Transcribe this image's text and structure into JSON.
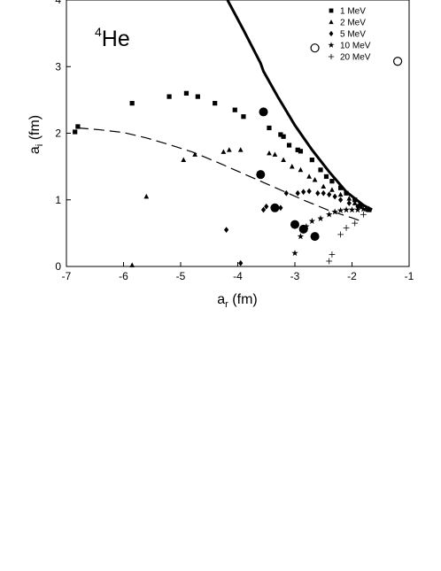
{
  "chart_data": {
    "type": "scatter",
    "xlabel_main": "a",
    "xlabel_sub": "r",
    "xlabel_unit": " (fm)",
    "ylabel_main": "a",
    "ylabel_sub": "i",
    "ylabel_unit": " (fm)",
    "xlim": [
      -7,
      -1
    ],
    "ylim": [
      0,
      4
    ],
    "x_ticks": [
      -7,
      -6,
      -5,
      -4,
      -3,
      -2,
      -1
    ],
    "y_ticks": [
      0,
      1,
      2,
      3,
      4
    ],
    "x_tick_labels": [
      "-7",
      "-6",
      "-5",
      "-4",
      "-3",
      "-2",
      "-1"
    ],
    "y_tick_labels": [
      "0",
      "1",
      "2",
      "3",
      "4"
    ],
    "annotation": {
      "superscript": "4",
      "text": "He"
    },
    "legend_position": "top-right",
    "series": [
      {
        "name": "1 MeV",
        "marker": "square",
        "points": [
          [
            -6.85,
            2.02
          ],
          [
            -6.8,
            2.1
          ],
          [
            -5.85,
            2.45
          ],
          [
            -5.2,
            2.55
          ],
          [
            -4.9,
            2.6
          ],
          [
            -4.7,
            2.55
          ],
          [
            -4.4,
            2.45
          ],
          [
            -4.05,
            2.35
          ],
          [
            -3.9,
            2.25
          ],
          [
            -3.45,
            2.08
          ],
          [
            -3.25,
            1.98
          ],
          [
            -3.2,
            1.95
          ],
          [
            -3.1,
            1.82
          ],
          [
            -2.95,
            1.75
          ],
          [
            -2.9,
            1.73
          ],
          [
            -2.7,
            1.6
          ],
          [
            -2.55,
            1.45
          ],
          [
            -2.45,
            1.35
          ],
          [
            -2.35,
            1.28
          ],
          [
            -2.2,
            1.18
          ],
          [
            -2.1,
            1.1
          ],
          [
            -1.95,
            1.0
          ],
          [
            -1.85,
            0.92
          ],
          [
            -1.7,
            0.85
          ]
        ]
      },
      {
        "name": "2 MeV",
        "marker": "triangle",
        "points": [
          [
            -5.85,
            0.02
          ],
          [
            -5.6,
            1.05
          ],
          [
            -4.95,
            1.6
          ],
          [
            -4.75,
            1.68
          ],
          [
            -4.25,
            1.72
          ],
          [
            -4.15,
            1.75
          ],
          [
            -3.95,
            1.75
          ],
          [
            -3.45,
            1.7
          ],
          [
            -3.35,
            1.68
          ],
          [
            -3.2,
            1.6
          ],
          [
            -3.05,
            1.5
          ],
          [
            -2.9,
            1.45
          ],
          [
            -2.75,
            1.35
          ],
          [
            -2.65,
            1.3
          ],
          [
            -2.5,
            1.2
          ],
          [
            -2.35,
            1.15
          ],
          [
            -2.2,
            1.08
          ],
          [
            -2.05,
            1.02
          ],
          [
            -1.95,
            0.95
          ],
          [
            -1.85,
            0.9
          ],
          [
            -1.7,
            0.85
          ]
        ]
      },
      {
        "name": "5 MeV",
        "marker": "diamond",
        "points": [
          [
            -4.2,
            0.55
          ],
          [
            -3.95,
            0.05
          ],
          [
            -3.55,
            0.85
          ],
          [
            -3.5,
            0.9
          ],
          [
            -3.25,
            0.88
          ],
          [
            -3.15,
            1.1
          ],
          [
            -2.95,
            1.1
          ],
          [
            -2.85,
            1.12
          ],
          [
            -2.75,
            1.13
          ],
          [
            -2.6,
            1.1
          ],
          [
            -2.5,
            1.1
          ],
          [
            -2.4,
            1.08
          ],
          [
            -2.3,
            1.05
          ],
          [
            -2.2,
            1.0
          ],
          [
            -2.05,
            0.95
          ],
          [
            -1.9,
            0.9
          ],
          [
            -1.75,
            0.86
          ]
        ]
      },
      {
        "name": "10 MeV",
        "marker": "star",
        "points": [
          [
            -3.0,
            0.2
          ],
          [
            -2.9,
            0.45
          ],
          [
            -2.8,
            0.6
          ],
          [
            -2.7,
            0.68
          ],
          [
            -2.55,
            0.72
          ],
          [
            -2.4,
            0.78
          ],
          [
            -2.3,
            0.82
          ],
          [
            -2.2,
            0.84
          ],
          [
            -2.1,
            0.85
          ],
          [
            -2.0,
            0.85
          ],
          [
            -1.9,
            0.85
          ],
          [
            -1.8,
            0.86
          ],
          [
            -1.7,
            0.86
          ]
        ]
      },
      {
        "name": "20 MeV",
        "marker": "plus",
        "points": [
          [
            -2.4,
            0.08
          ],
          [
            -2.35,
            0.18
          ],
          [
            -2.2,
            0.48
          ],
          [
            -2.1,
            0.58
          ],
          [
            -1.95,
            0.65
          ],
          [
            -1.8,
            0.78
          ]
        ]
      }
    ],
    "filled_circles": [
      [
        -3.55,
        2.32
      ],
      [
        -3.6,
        1.38
      ],
      [
        -3.35,
        0.88
      ],
      [
        -3.0,
        0.63
      ],
      [
        -2.85,
        0.56
      ],
      [
        -2.65,
        0.45
      ]
    ],
    "open_circles": [
      [
        -2.65,
        3.28
      ],
      [
        -1.2,
        3.08
      ]
    ],
    "solid_curve": [
      [
        -4.18,
        4.0
      ],
      [
        -3.9,
        3.55
      ],
      [
        -3.6,
        3.05
      ],
      [
        -3.55,
        2.93
      ],
      [
        -3.3,
        2.55
      ],
      [
        -3.0,
        2.12
      ],
      [
        -2.7,
        1.75
      ],
      [
        -2.4,
        1.42
      ],
      [
        -2.1,
        1.12
      ],
      [
        -1.95,
        1.02
      ],
      [
        -1.8,
        0.92
      ],
      [
        -1.65,
        0.85
      ]
    ],
    "dashed_curve": [
      [
        -6.8,
        2.08
      ],
      [
        -6.4,
        2.05
      ],
      [
        -6.0,
        2.01
      ],
      [
        -5.6,
        1.93
      ],
      [
        -5.2,
        1.83
      ],
      [
        -4.8,
        1.72
      ],
      [
        -4.4,
        1.58
      ],
      [
        -4.0,
        1.43
      ],
      [
        -3.6,
        1.28
      ],
      [
        -3.2,
        1.13
      ],
      [
        -2.8,
        0.98
      ],
      [
        -2.4,
        0.84
      ],
      [
        -2.0,
        0.73
      ],
      [
        -1.8,
        0.67
      ]
    ]
  }
}
